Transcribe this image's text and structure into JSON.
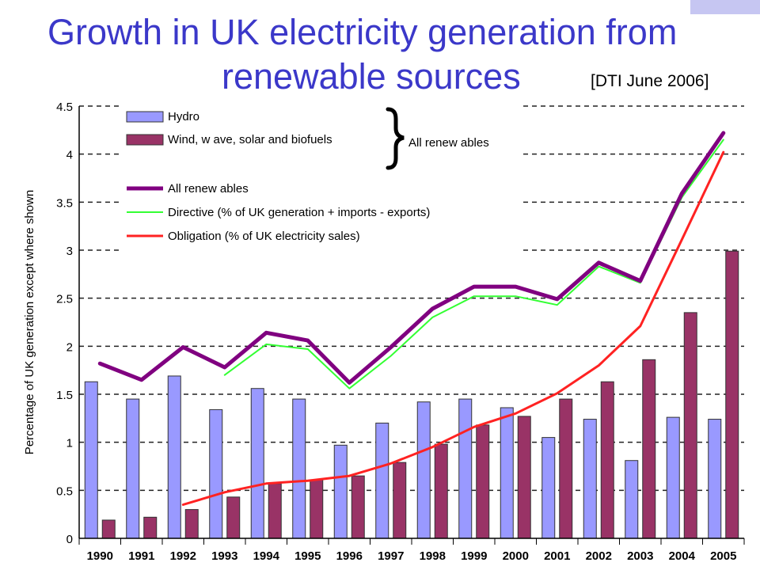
{
  "header": {
    "title_line1": "Growth in UK electricity generation from",
    "title_line2": "renewable sources",
    "source": "[DTI June 2006]"
  },
  "colors": {
    "hydro": "#9999ff",
    "wind": "#993366",
    "all_renewables": "#800080",
    "directive": "#33ff33",
    "obligation": "#ff2222",
    "title": "#3b38c9"
  },
  "chart_data": {
    "type": "bar",
    "title": "",
    "xlabel": "",
    "ylabel": "Percentage of UK generation except where shown",
    "ylim": [
      0,
      4.5
    ],
    "yticks": [
      "0",
      "0.5",
      "1",
      "1.5",
      "2",
      "2.5",
      "3",
      "3.5",
      "4",
      "4.5"
    ],
    "grid": "dashed horizontal",
    "legend_position": "top-left",
    "categories": [
      "1990",
      "1991",
      "1992",
      "1993",
      "1994",
      "1995",
      "1996",
      "1997",
      "1998",
      "1999",
      "2000",
      "2001",
      "2002",
      "2003",
      "2004",
      "2005"
    ],
    "bar_series": [
      {
        "name": "Hydro",
        "color": "#9999ff",
        "values": [
          1.63,
          1.45,
          1.69,
          1.34,
          1.56,
          1.45,
          0.97,
          1.2,
          1.42,
          1.45,
          1.36,
          1.05,
          1.24,
          0.81,
          1.26,
          1.24
        ]
      },
      {
        "name": "Wind, w ave, solar and biofuels",
        "color": "#993366",
        "values": [
          0.19,
          0.22,
          0.3,
          0.43,
          0.57,
          0.61,
          0.65,
          0.79,
          0.98,
          1.18,
          1.27,
          1.45,
          1.63,
          1.86,
          2.35,
          2.99
        ]
      }
    ],
    "line_series": [
      {
        "name": "All renew ables",
        "color": "#800080",
        "width": 5,
        "values": [
          1.82,
          1.65,
          1.99,
          1.78,
          2.14,
          2.06,
          1.62,
          1.99,
          2.39,
          2.62,
          2.62,
          2.49,
          2.87,
          2.68,
          3.59,
          4.22
        ]
      },
      {
        "name": "Directive (% of UK generation + imports - exports)",
        "color": "#33ff33",
        "width": 2,
        "values": [
          null,
          null,
          null,
          1.7,
          2.02,
          1.97,
          1.56,
          1.9,
          2.3,
          2.52,
          2.52,
          2.43,
          2.83,
          2.66,
          3.55,
          4.15
        ]
      },
      {
        "name": "Obligation (% of UK electricity sales)",
        "color": "#ff2222",
        "width": 3,
        "values": [
          null,
          null,
          0.35,
          0.48,
          0.57,
          0.6,
          0.65,
          0.78,
          0.95,
          1.16,
          1.3,
          1.51,
          1.8,
          2.21,
          3.11,
          4.02
        ]
      }
    ],
    "legend": {
      "group_label": "All renew ables",
      "items": [
        {
          "label": "Hydro",
          "kind": "bar",
          "color": "#9999ff"
        },
        {
          "label": "Wind, w ave, solar and biofuels",
          "kind": "bar",
          "color": "#993366"
        },
        {
          "label": "All renew ables",
          "kind": "line",
          "color": "#800080",
          "width": 5
        },
        {
          "label": "Directive (% of UK generation + imports - exports)",
          "kind": "line",
          "color": "#33ff33",
          "width": 2
        },
        {
          "label": "Obligation (% of UK electricity sales)",
          "kind": "line",
          "color": "#ff2222",
          "width": 3
        }
      ]
    }
  }
}
